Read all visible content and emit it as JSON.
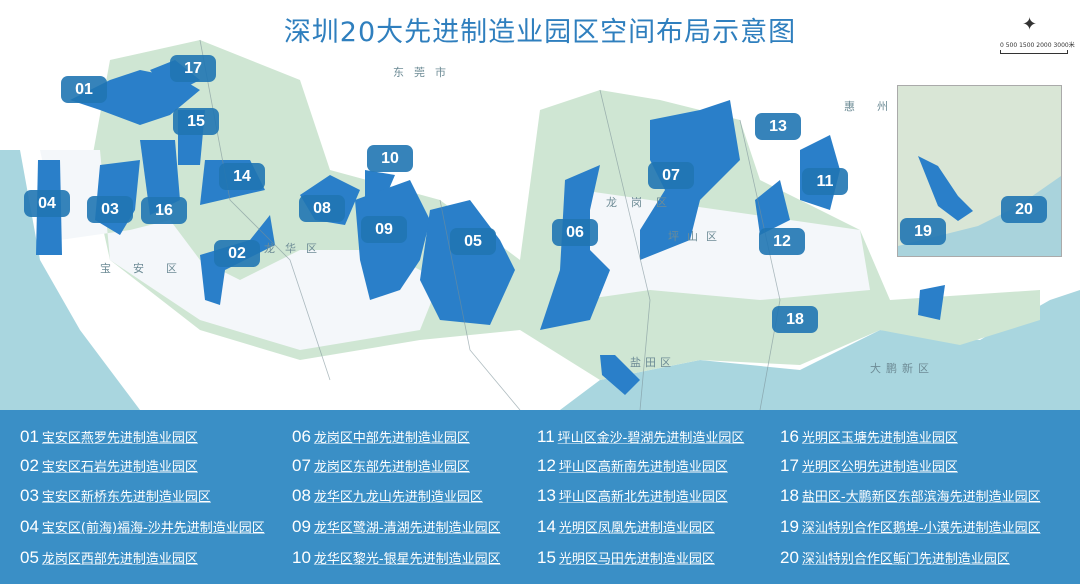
{
  "title": "深圳20大先进制造业园区空间布局示意图",
  "map_labels": {
    "dongguan": "东莞市",
    "huizhou": "惠州",
    "baoan": "宝安区",
    "longhua": "龙华区",
    "longgang": "龙岗区",
    "pingshan": "坪山区",
    "yantian": "盐田区",
    "dapeng": "大鹏新区"
  },
  "scale_label": "0 500 1500 2000 3000米",
  "colors": {
    "park": "#2a7fc9",
    "badge": "#2076b2",
    "legend_bg": "#3a8fc6",
    "green": "#cfe6d3",
    "sea": "#a9d6df",
    "title": "#2f7fbe"
  },
  "parks": [
    {
      "id": "01",
      "name": "宝安区燕罗先进制造业园区"
    },
    {
      "id": "02",
      "name": "宝安区石岩先进制造业园区"
    },
    {
      "id": "03",
      "name": "宝安区新桥东先进制造业园区"
    },
    {
      "id": "04",
      "name": "宝安区(前海)福海-沙井先进制造业园区"
    },
    {
      "id": "05",
      "name": "龙岗区西部先进制造业园区"
    },
    {
      "id": "06",
      "name": "龙岗区中部先进制造业园区"
    },
    {
      "id": "07",
      "name": "龙岗区东部先进制造业园区"
    },
    {
      "id": "08",
      "name": "龙华区九龙山先进制造业园区"
    },
    {
      "id": "09",
      "name": "龙华区鹭湖-清湖先进制造业园区"
    },
    {
      "id": "10",
      "name": "龙华区黎光-银星先进制造业园区"
    },
    {
      "id": "11",
      "name": "坪山区金沙-碧湖先进制造业园区"
    },
    {
      "id": "12",
      "name": "坪山区高新南先进制造业园区"
    },
    {
      "id": "13",
      "name": "坪山区高新北先进制造业园区"
    },
    {
      "id": "14",
      "name": "光明区凤凰先进制造业园区"
    },
    {
      "id": "15",
      "name": "光明区马田先进制造业园区"
    },
    {
      "id": "16",
      "name": "光明区玉塘先进制造业园区"
    },
    {
      "id": "17",
      "name": "光明区公明先进制造业园区"
    },
    {
      "id": "18",
      "name": "盐田区-大鹏新区东部滨海先进制造业园区"
    },
    {
      "id": "19",
      "name": "深汕特别合作区鹅埠-小漠先进制造业园区"
    },
    {
      "id": "20",
      "name": "深汕特别合作区鲘门先进制造业园区"
    }
  ]
}
